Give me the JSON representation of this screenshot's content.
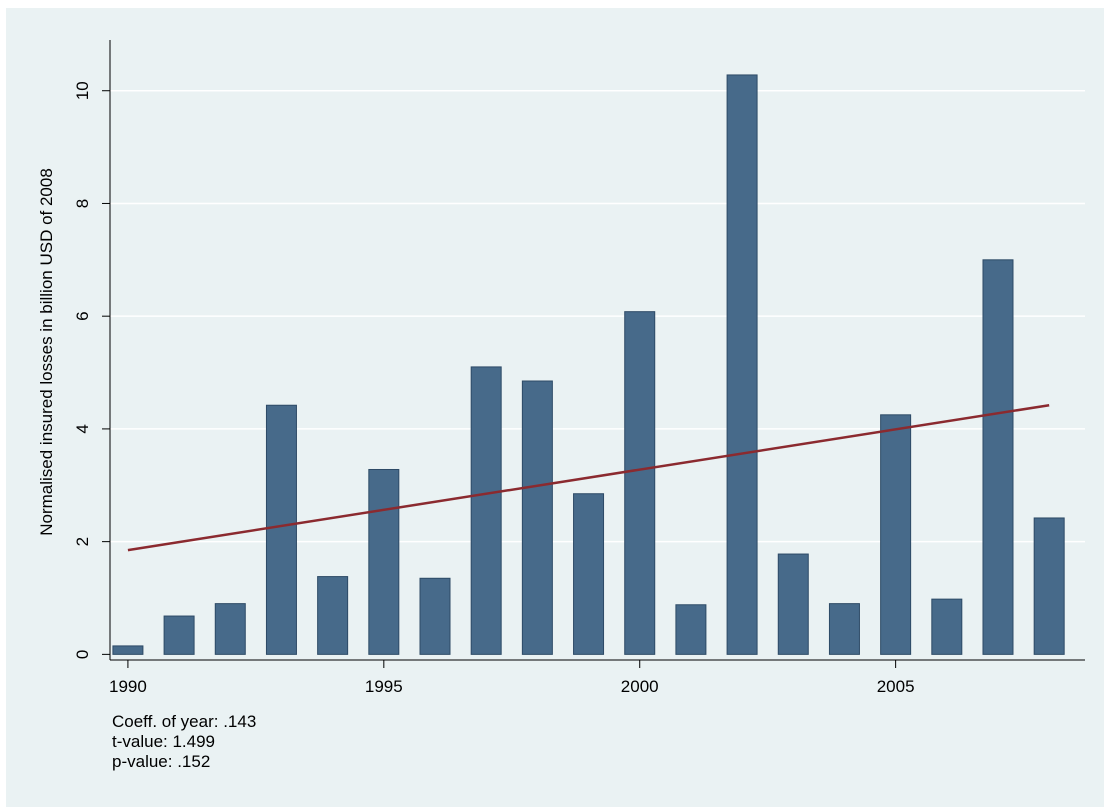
{
  "chart_data": {
    "type": "bar",
    "title": "",
    "xlabel": "",
    "ylabel": "Normalised insured losses in billion USD of 2008",
    "x": [
      1990,
      1991,
      1992,
      1993,
      1994,
      1995,
      1996,
      1997,
      1998,
      1999,
      2000,
      2001,
      2002,
      2003,
      2004,
      2005,
      2006,
      2007,
      2008
    ],
    "values": [
      0.15,
      0.68,
      0.9,
      4.42,
      1.38,
      3.28,
      1.35,
      5.1,
      4.85,
      2.85,
      6.08,
      0.88,
      10.28,
      1.78,
      0.9,
      4.25,
      0.98,
      7.0,
      2.42
    ],
    "xticks": [
      1990,
      1995,
      2000,
      2005
    ],
    "yticks": [
      0,
      2,
      4,
      6,
      8,
      10
    ],
    "xlim": [
      1989.65,
      2008.7
    ],
    "ylim": [
      -0.1,
      10.9
    ],
    "trend_line": {
      "type": "line",
      "x": [
        1990,
        2008
      ],
      "y": [
        1.85,
        4.42
      ]
    },
    "grid": "horizontal",
    "colors": {
      "bar": "#476a8a",
      "bar_edge": "#2d4a66",
      "trend": "#8b2a2f",
      "grid": "#ffffff",
      "plot_background": "#eaf2f3"
    }
  },
  "notes": {
    "coeff": "Coeff. of year: .143",
    "tvalue": "t-value: 1.499",
    "pvalue": "p-value: .152"
  }
}
